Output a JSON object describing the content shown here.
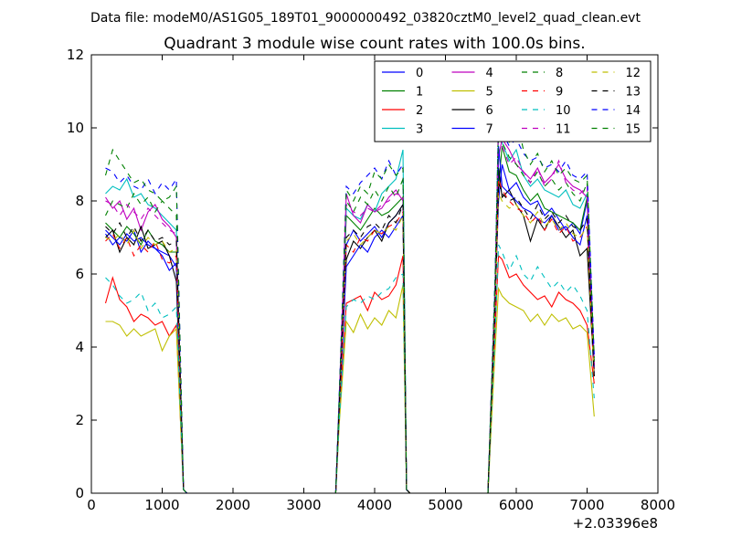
{
  "chart_data": {
    "type": "line",
    "suptitle": "Data file: modeM0/AS1G05_189T01_9000000492_03820cztM0_level2_quad_clean.evt",
    "title": "Quadrant 3 module wise count rates with 100.0s bins.",
    "xlabel": "",
    "ylabel": "",
    "x_offset_label": "+2.03396e8",
    "xlim": [
      0,
      8000
    ],
    "ylim": [
      0,
      12
    ],
    "x_ticks": [
      "0",
      "1000",
      "2000",
      "3000",
      "4000",
      "5000",
      "6000",
      "7000",
      "8000"
    ],
    "y_ticks": [
      "0",
      "2",
      "4",
      "6",
      "8",
      "10",
      "12"
    ],
    "grid": false,
    "legend_position": "top-right",
    "legend_columns": 4,
    "x": [
      200,
      300,
      400,
      500,
      600,
      700,
      800,
      900,
      1000,
      1100,
      1200,
      1300,
      1350,
      1400,
      1500,
      3400,
      3450,
      3500,
      3600,
      3700,
      3800,
      3900,
      4000,
      4100,
      4200,
      4300,
      4400,
      4450,
      4500,
      4550,
      4600,
      5600,
      5700,
      5750,
      5800,
      5900,
      6000,
      6100,
      6200,
      6300,
      6400,
      6500,
      6600,
      6700,
      6800,
      6900,
      7000,
      7100
    ],
    "series": [
      {
        "name": "0",
        "color": "#0000ff",
        "dash": "solid",
        "values": [
          7.1,
          6.8,
          7.0,
          6.9,
          7.2,
          6.6,
          6.9,
          6.7,
          6.6,
          6.5,
          6.2,
          0.1,
          0.0,
          0.0,
          0.0,
          0.0,
          0.0,
          2.4,
          6.8,
          7.2,
          6.9,
          7.1,
          7.3,
          7.0,
          7.4,
          7.6,
          7.9,
          0.1,
          0.0,
          0.0,
          0.0,
          0.0,
          5.2,
          8.0,
          9.0,
          8.3,
          8.5,
          8.1,
          7.9,
          8.0,
          7.6,
          7.8,
          7.5,
          7.2,
          7.4,
          7.1,
          8.0,
          3.4
        ]
      },
      {
        "name": "1",
        "color": "#008000",
        "dash": "solid",
        "values": [
          7.4,
          7.2,
          7.0,
          7.3,
          7.1,
          6.8,
          7.2,
          6.9,
          6.8,
          6.6,
          6.6,
          0.1,
          0.0,
          0.0,
          0.0,
          0.0,
          0.0,
          2.5,
          7.6,
          7.4,
          7.2,
          7.5,
          7.8,
          7.6,
          7.7,
          7.9,
          8.1,
          0.1,
          0.0,
          0.0,
          0.0,
          0.0,
          5.3,
          8.4,
          9.5,
          8.8,
          8.7,
          8.3,
          8.0,
          8.2,
          7.8,
          7.7,
          7.6,
          7.5,
          7.4,
          7.2,
          8.1,
          3.4
        ]
      },
      {
        "name": "2",
        "color": "#ff0000",
        "dash": "solid",
        "values": [
          5.2,
          5.9,
          5.3,
          5.1,
          4.7,
          4.9,
          4.8,
          4.6,
          4.7,
          4.3,
          4.6,
          0.1,
          0.0,
          0.0,
          0.0,
          0.0,
          0.0,
          2.1,
          5.2,
          5.3,
          5.4,
          5.0,
          5.5,
          5.3,
          5.4,
          5.7,
          6.5,
          0.1,
          0.0,
          0.0,
          0.0,
          0.0,
          4.5,
          6.5,
          6.4,
          5.9,
          6.0,
          5.7,
          5.5,
          5.3,
          5.4,
          5.1,
          5.5,
          5.3,
          5.2,
          5.0,
          4.6,
          3.0
        ]
      },
      {
        "name": "3",
        "color": "#00bfbf",
        "dash": "solid",
        "values": [
          8.2,
          8.4,
          8.3,
          8.6,
          8.1,
          8.2,
          7.9,
          7.8,
          7.6,
          7.4,
          7.2,
          0.1,
          0.0,
          0.0,
          0.0,
          0.0,
          0.0,
          2.7,
          7.8,
          7.6,
          7.5,
          7.9,
          7.7,
          8.2,
          8.4,
          8.6,
          9.4,
          0.1,
          0.0,
          0.0,
          0.0,
          0.0,
          5.8,
          9.9,
          9.6,
          9.1,
          9.4,
          8.7,
          8.4,
          8.6,
          8.3,
          8.2,
          8.1,
          8.3,
          7.9,
          7.8,
          8.2,
          3.6
        ]
      },
      {
        "name": "4",
        "color": "#bf00bf",
        "dash": "solid",
        "values": [
          8.1,
          7.8,
          8.0,
          7.5,
          7.8,
          7.2,
          7.7,
          7.9,
          7.5,
          7.3,
          7.0,
          0.1,
          0.0,
          0.0,
          0.0,
          0.0,
          0.0,
          2.6,
          8.2,
          7.6,
          7.4,
          7.9,
          7.7,
          7.8,
          8.1,
          8.3,
          8.0,
          0.1,
          0.0,
          0.0,
          0.0,
          0.0,
          5.6,
          9.2,
          9.7,
          9.4,
          9.0,
          8.8,
          8.6,
          8.9,
          8.5,
          8.7,
          9.0,
          8.6,
          8.4,
          8.3,
          8.1,
          3.5
        ]
      },
      {
        "name": "5",
        "color": "#bfbf00",
        "dash": "solid",
        "values": [
          4.7,
          4.7,
          4.6,
          4.3,
          4.5,
          4.3,
          4.4,
          4.5,
          3.9,
          4.3,
          4.5,
          0.1,
          0.0,
          0.0,
          0.0,
          0.0,
          0.0,
          1.9,
          4.7,
          4.4,
          4.9,
          4.5,
          4.8,
          4.6,
          5.0,
          4.8,
          5.7,
          0.1,
          0.0,
          0.0,
          0.0,
          0.0,
          3.9,
          5.6,
          5.4,
          5.2,
          5.1,
          5.0,
          4.7,
          4.9,
          4.6,
          4.9,
          4.7,
          4.8,
          4.5,
          4.6,
          4.4,
          2.1
        ]
      },
      {
        "name": "6",
        "color": "#000000",
        "dash": "solid",
        "values": [
          7.0,
          7.2,
          6.6,
          7.0,
          6.8,
          7.3,
          6.7,
          6.8,
          6.9,
          6.5,
          5.8,
          0.1,
          0.0,
          0.0,
          0.0,
          0.0,
          0.0,
          2.4,
          6.4,
          6.9,
          6.7,
          7.0,
          7.2,
          6.9,
          7.4,
          7.6,
          7.9,
          0.1,
          0.0,
          0.0,
          0.0,
          0.0,
          5.1,
          8.9,
          8.1,
          8.3,
          7.9,
          7.6,
          6.9,
          7.5,
          7.2,
          7.6,
          7.3,
          7.0,
          7.2,
          6.5,
          6.7,
          3.2
        ]
      },
      {
        "name": "7",
        "color": "#0000ff",
        "dash": "solid",
        "values": [
          7.2,
          7.0,
          6.8,
          7.1,
          6.9,
          7.0,
          6.8,
          6.7,
          6.5,
          6.1,
          6.3,
          0.1,
          0.0,
          0.0,
          0.0,
          0.0,
          0.0,
          2.3,
          6.2,
          6.5,
          6.8,
          6.6,
          7.0,
          7.2,
          7.0,
          7.3,
          7.6,
          0.1,
          0.0,
          0.0,
          0.0,
          0.0,
          5.0,
          9.5,
          8.4,
          8.2,
          8.0,
          7.8,
          7.7,
          7.5,
          7.4,
          7.6,
          7.2,
          7.3,
          7.0,
          6.8,
          7.6,
          3.3
        ]
      },
      {
        "name": "8",
        "color": "#008000",
        "dash": "dashed",
        "values": [
          7.6,
          8.0,
          7.9,
          7.8,
          8.2,
          7.9,
          8.1,
          7.7,
          8.0,
          7.8,
          7.6,
          0.1,
          0.0,
          0.0,
          0.0,
          0.0,
          0.0,
          2.5,
          8.0,
          7.7,
          8.1,
          7.9,
          8.3,
          8.0,
          8.4,
          8.1,
          8.6,
          0.1,
          0.0,
          0.0,
          0.0,
          0.0,
          5.5,
          10.4,
          9.6,
          9.2,
          9.0,
          8.7,
          8.5,
          8.8,
          8.4,
          8.6,
          8.3,
          8.5,
          8.2,
          8.0,
          8.5,
          3.6
        ]
      },
      {
        "name": "9",
        "color": "#ff0000",
        "dash": "dashed",
        "values": [
          6.9,
          7.1,
          6.7,
          7.0,
          6.5,
          6.8,
          6.6,
          6.9,
          6.4,
          6.3,
          6.5,
          0.1,
          0.0,
          0.0,
          0.0,
          0.0,
          0.0,
          2.2,
          6.8,
          6.6,
          7.0,
          6.9,
          7.2,
          7.1,
          7.3,
          7.4,
          7.7,
          0.1,
          0.0,
          0.0,
          0.0,
          0.0,
          5.2,
          8.6,
          8.3,
          8.0,
          7.8,
          7.7,
          7.4,
          7.6,
          7.2,
          7.5,
          7.1,
          7.3,
          6.9,
          7.0,
          7.3,
          3.2
        ]
      },
      {
        "name": "10",
        "color": "#00bfbf",
        "dash": "dashed",
        "values": [
          5.9,
          5.7,
          5.4,
          5.2,
          5.3,
          5.5,
          5.0,
          5.2,
          4.8,
          4.9,
          5.1,
          0.1,
          0.0,
          0.0,
          0.0,
          0.0,
          0.0,
          2.0,
          5.1,
          5.3,
          5.2,
          5.4,
          5.3,
          5.5,
          5.6,
          5.9,
          6.0,
          0.1,
          0.0,
          0.0,
          0.0,
          0.0,
          4.3,
          6.8,
          6.6,
          6.1,
          6.5,
          6.0,
          5.8,
          6.2,
          5.9,
          5.6,
          5.8,
          5.5,
          5.7,
          5.4,
          5.0,
          2.6
        ]
      },
      {
        "name": "11",
        "color": "#bf00bf",
        "dash": "dashed",
        "values": [
          8.0,
          7.9,
          7.6,
          7.9,
          7.7,
          7.5,
          7.8,
          7.6,
          7.4,
          7.2,
          7.1,
          0.1,
          0.0,
          0.0,
          0.0,
          0.0,
          0.0,
          2.6,
          7.9,
          7.7,
          7.6,
          7.8,
          7.7,
          7.9,
          8.0,
          8.2,
          8.1,
          0.1,
          0.0,
          0.0,
          0.0,
          0.0,
          5.6,
          10.1,
          9.5,
          9.0,
          9.2,
          8.8,
          8.5,
          8.9,
          8.4,
          8.6,
          9.1,
          8.5,
          8.3,
          8.2,
          8.4,
          3.5
        ]
      },
      {
        "name": "12",
        "color": "#bfbf00",
        "dash": "dashed",
        "values": [
          7.0,
          6.9,
          7.1,
          6.8,
          7.2,
          6.7,
          7.0,
          6.8,
          6.9,
          6.6,
          6.7,
          0.1,
          0.0,
          0.0,
          0.0,
          0.0,
          0.0,
          2.3,
          6.9,
          7.1,
          6.8,
          7.0,
          7.2,
          7.1,
          7.3,
          7.2,
          7.6,
          0.1,
          0.0,
          0.0,
          0.0,
          0.0,
          5.0,
          8.2,
          8.0,
          7.8,
          7.9,
          7.6,
          7.4,
          7.7,
          7.3,
          7.5,
          7.2,
          7.4,
          7.1,
          7.0,
          7.3,
          3.1
        ]
      },
      {
        "name": "13",
        "color": "#000000",
        "dash": "dashed",
        "values": [
          7.3,
          7.1,
          7.4,
          7.0,
          7.3,
          6.9,
          7.2,
          6.9,
          7.0,
          6.8,
          6.9,
          0.1,
          0.0,
          0.0,
          0.0,
          0.0,
          0.0,
          2.4,
          7.0,
          7.2,
          7.0,
          7.3,
          7.4,
          7.2,
          7.6,
          7.4,
          7.9,
          0.1,
          0.0,
          0.0,
          0.0,
          0.0,
          5.1,
          8.5,
          8.2,
          8.0,
          8.1,
          7.8,
          7.5,
          7.9,
          7.5,
          7.7,
          7.4,
          7.6,
          7.3,
          7.2,
          7.5,
          3.2
        ]
      },
      {
        "name": "14",
        "color": "#0000ff",
        "dash": "dashed",
        "values": [
          8.9,
          8.8,
          8.5,
          8.7,
          8.4,
          8.3,
          8.6,
          8.2,
          8.5,
          8.3,
          8.6,
          0.1,
          0.0,
          0.0,
          0.0,
          0.0,
          0.0,
          2.7,
          8.4,
          8.2,
          8.5,
          8.7,
          8.9,
          8.6,
          9.1,
          8.7,
          9.0,
          0.1,
          0.0,
          0.0,
          0.0,
          0.0,
          5.9,
          10.2,
          9.9,
          9.5,
          9.7,
          9.3,
          9.1,
          9.2,
          8.9,
          9.0,
          8.8,
          9.1,
          8.7,
          8.6,
          8.8,
          3.8
        ]
      },
      {
        "name": "15",
        "color": "#008000",
        "dash": "dashed",
        "values": [
          8.7,
          9.4,
          9.1,
          8.8,
          8.5,
          8.6,
          8.3,
          8.2,
          8.0,
          8.1,
          8.4,
          0.1,
          0.0,
          0.0,
          0.0,
          0.0,
          0.0,
          2.6,
          8.3,
          8.0,
          8.4,
          8.2,
          8.8,
          8.6,
          9.0,
          8.7,
          8.9,
          0.1,
          0.0,
          0.0,
          0.0,
          0.0,
          5.8,
          9.8,
          10.5,
          9.6,
          10.3,
          9.4,
          9.0,
          9.3,
          8.8,
          9.1,
          8.7,
          8.9,
          8.6,
          8.5,
          8.7,
          3.7
        ]
      }
    ]
  }
}
